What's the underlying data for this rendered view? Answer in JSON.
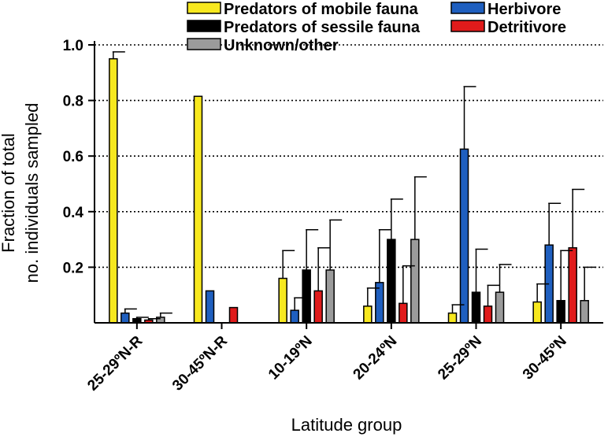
{
  "chart_data": {
    "type": "bar",
    "xlabel": "Latitude group",
    "ylabel_lines": [
      "Fraction of total",
      "no. individuals sampled"
    ],
    "ylim": [
      0,
      1.0
    ],
    "y_ticks": [
      "0.2",
      "0.4",
      "0.6",
      "0.8",
      "1.0"
    ],
    "grid": "horizontal dotted",
    "legend_placement": "top",
    "categories": [
      "25-29ºN-R",
      "30-45ºN-R",
      "10-19ºN",
      "20-24ºN",
      "25-29ºN",
      "30-45ºN"
    ],
    "series": [
      {
        "name": "Predators of mobile fauna",
        "color": "#f7e81f",
        "values": [
          0.95,
          0.815,
          0.16,
          0.06,
          0.035,
          0.075
        ],
        "error": [
          0.025,
          0,
          0.1,
          0.065,
          0.03,
          0.065
        ]
      },
      {
        "name": "Herbivore",
        "color": "#1f5fbf",
        "values": [
          0.035,
          0.115,
          0.045,
          0.145,
          0.625,
          0.28
        ],
        "error": [
          0.015,
          0,
          0.045,
          0.19,
          0.225,
          0.15
        ]
      },
      {
        "name": "Predators of sessile fauna",
        "color": "#000000",
        "values": [
          0.015,
          0,
          0.19,
          0.3,
          0.11,
          0.08
        ],
        "error": [
          0.005,
          0,
          0.145,
          0.145,
          0.155,
          0.18
        ]
      },
      {
        "name": "Detritivore",
        "color": "#e01b1b",
        "values": [
          0.01,
          0.055,
          0.115,
          0.07,
          0.06,
          0.27
        ],
        "error": [
          0.005,
          0,
          0.155,
          0.135,
          0.075,
          0.21
        ]
      },
      {
        "name": "Unknown/other",
        "color": "#9b9b9b",
        "values": [
          0.02,
          0,
          0.19,
          0.3,
          0.11,
          0.08
        ],
        "error": [
          0.015,
          0,
          0.18,
          0.225,
          0.1,
          0.12
        ]
      }
    ]
  }
}
